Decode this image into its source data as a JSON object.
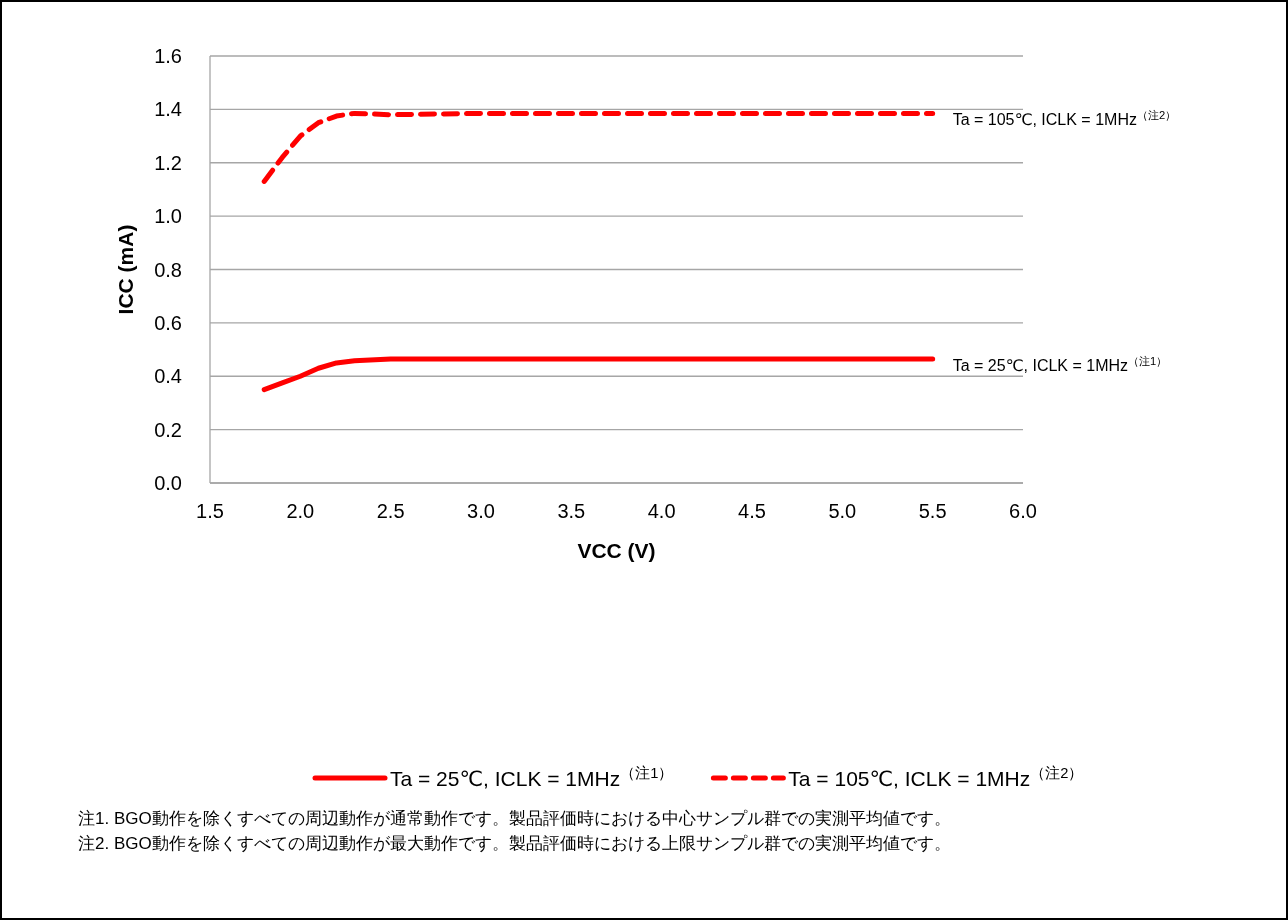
{
  "chart_data": {
    "type": "line",
    "xlabel": "VCC (V)",
    "ylabel": "ICC (mA)",
    "x": [
      1.8,
      1.9,
      2.0,
      2.1,
      2.2,
      2.3,
      2.5,
      3.0,
      4.0,
      5.0,
      5.5
    ],
    "series": [
      {
        "name": "Ta = 25℃, ICLK = 1MHz$^{（注1）}$",
        "color": "#ff0000",
        "line_style": "solid",
        "values": [
          0.35,
          0.375,
          0.4,
          0.43,
          0.45,
          0.458,
          0.465,
          0.465,
          0.465,
          0.465,
          0.465
        ]
      },
      {
        "name": "Ta = 105℃, ICLK = 1MHz$^{（注2）}$",
        "color": "#ff0000",
        "line_style": "dashed",
        "values": [
          1.13,
          1.22,
          1.3,
          1.35,
          1.375,
          1.385,
          1.38,
          1.385,
          1.385,
          1.385,
          1.385
        ]
      }
    ],
    "xlim": [
      1.5,
      6.0
    ],
    "xticks": [
      {
        "value": 1.5,
        "label": "1.5"
      },
      {
        "value": 2.0,
        "label": "2.0"
      },
      {
        "value": 2.5,
        "label": "2.5"
      },
      {
        "value": 3.0,
        "label": "3.0"
      },
      {
        "value": 3.5,
        "label": "3.5"
      },
      {
        "value": 4.0,
        "label": "4.0"
      },
      {
        "value": 4.5,
        "label": "4.5"
      },
      {
        "value": 5.0,
        "label": "5.0"
      },
      {
        "value": 5.5,
        "label": "5.5"
      },
      {
        "value": 6.0,
        "label": "6.0"
      }
    ],
    "ylim": [
      0,
      1.6
    ],
    "yticks": [
      {
        "value": 0,
        "label": "0.0"
      },
      {
        "value": 0.2,
        "label": "0.2"
      },
      {
        "value": 0.4,
        "label": "0.4"
      },
      {
        "value": 0.6,
        "label": "0.6"
      },
      {
        "value": 0.8,
        "label": "0.8"
      },
      {
        "value": 1.0,
        "label": "1.0"
      },
      {
        "value": 1.2,
        "label": "1.2"
      },
      {
        "value": 1.4,
        "label": "1.4"
      },
      {
        "value": 1.6,
        "label": "1.6"
      }
    ],
    "grid": "y",
    "legend": "bottom",
    "annotations": [
      {
        "text": "Ta = 105℃, ICLK = 1MHz$^{（注2）}$",
        "x": 5.5,
        "y": 1.385
      },
      {
        "text": "Ta = 25℃, ICLK = 1MHz$^{（注1）}$",
        "x": 5.5,
        "y": 0.465
      },
      "注1. BGO動作を除くすべての周辺動作が通常動作です。製品評価時における中心サンプル群での実測平均値です。",
      "注2. BGO動作を除くすべての周辺動作が最大動作です。製品評価時における上限サンプル群での実測平均値です。"
    ]
  }
}
